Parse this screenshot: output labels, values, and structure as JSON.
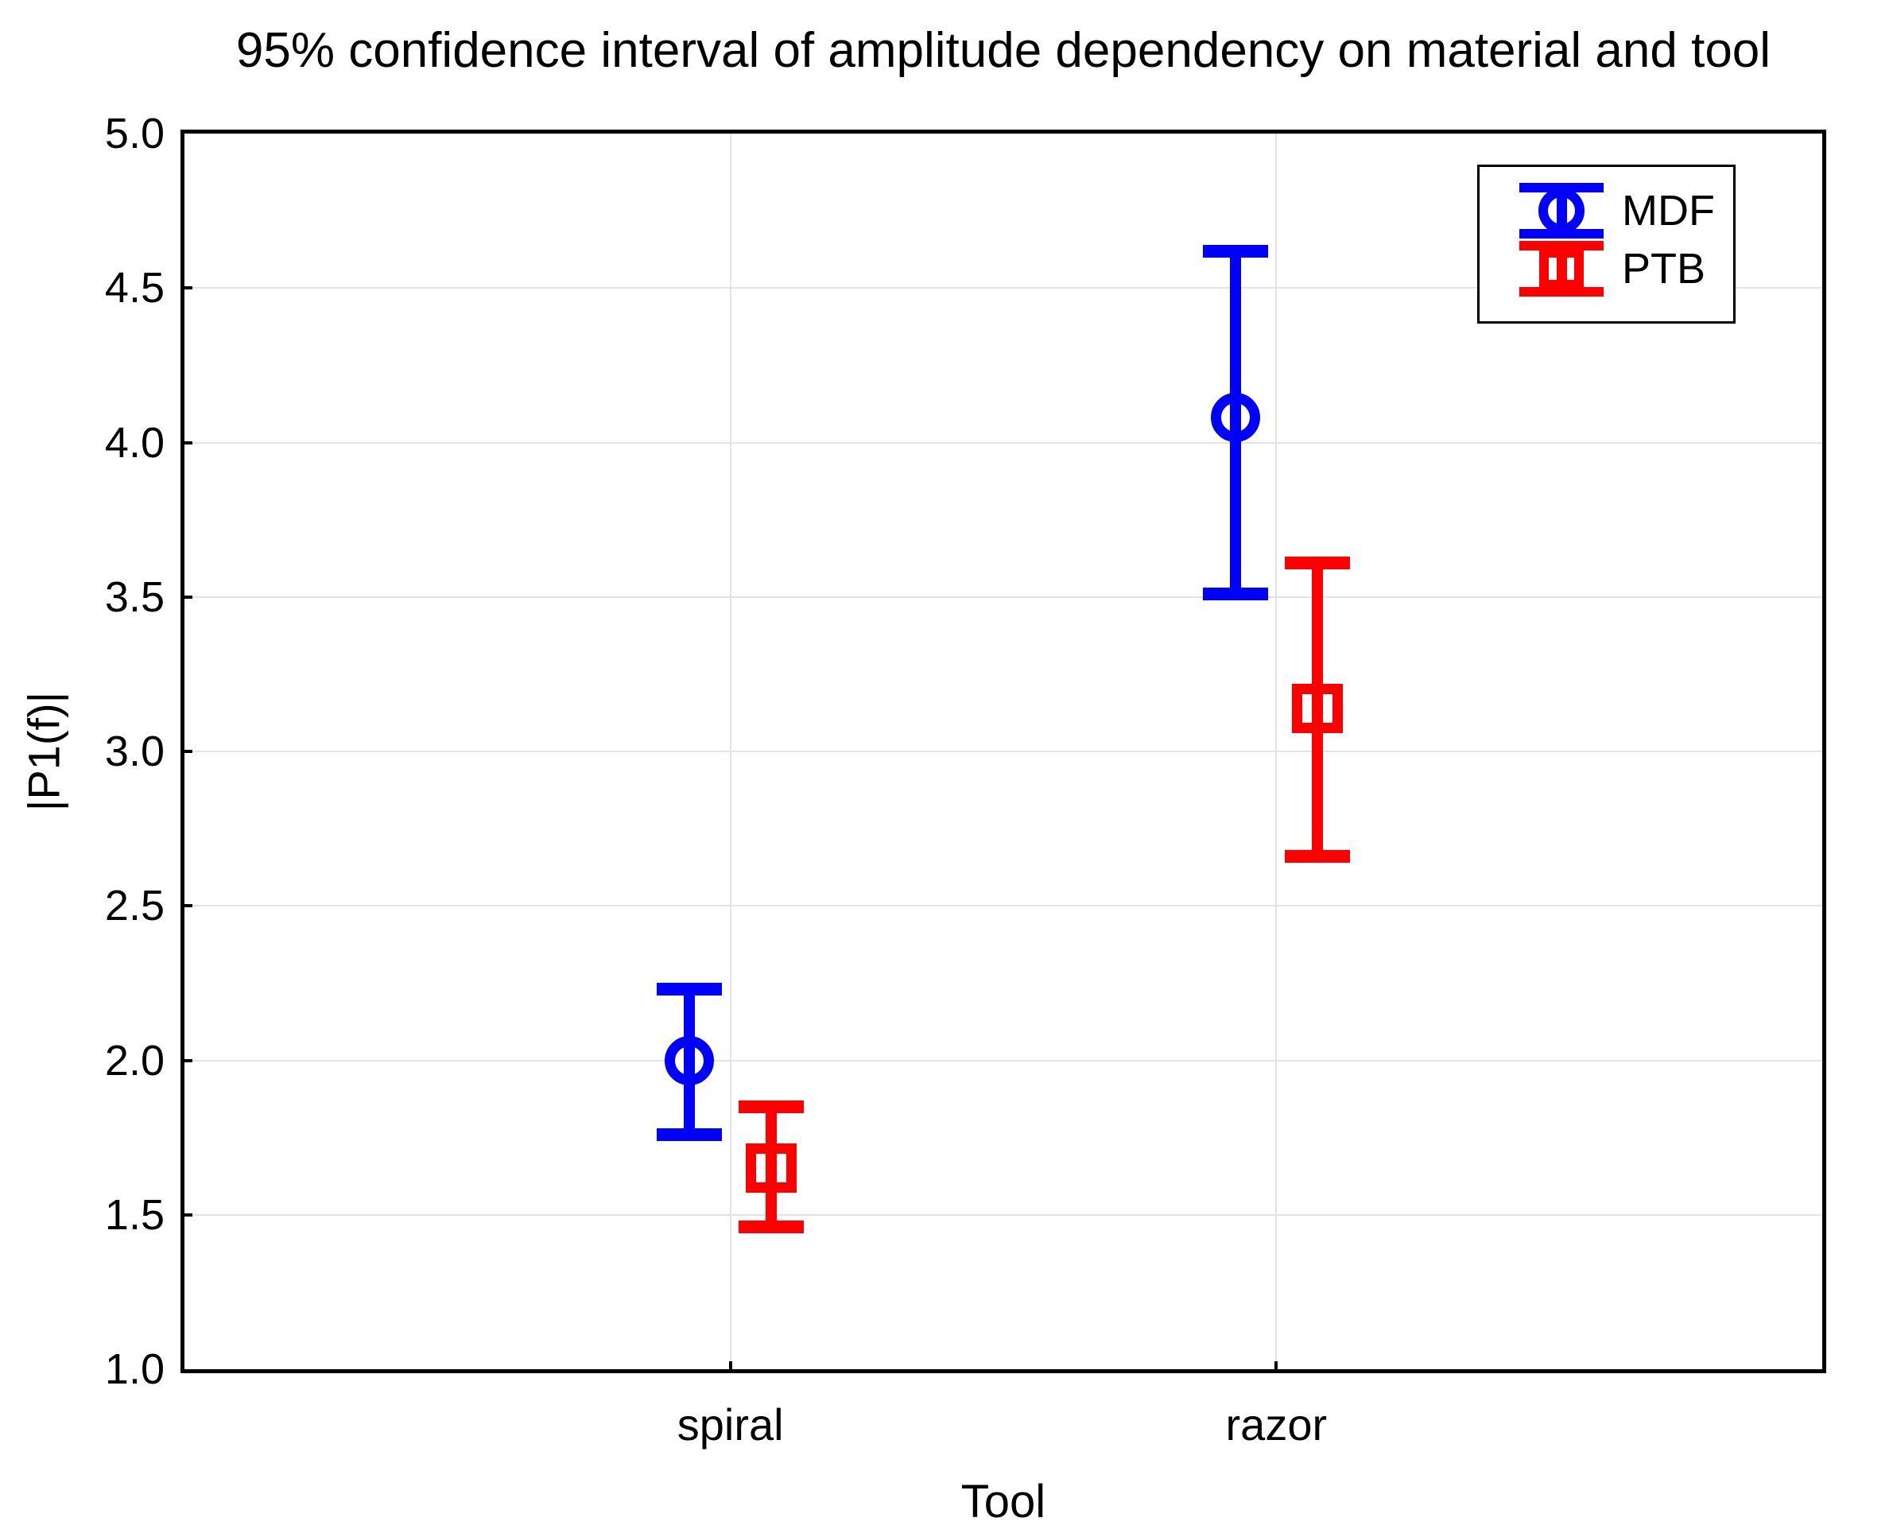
{
  "chart_data": {
    "type": "errorbar",
    "title": "95% confidence interval of amplitude dependency on material and tool",
    "xlabel": "Tool",
    "ylabel": "|P1(f)|",
    "categories": [
      "spiral",
      "razor"
    ],
    "ylim": [
      1.0,
      5.0
    ],
    "yticks": [
      5.0,
      4.5,
      4.0,
      3.5,
      3.0,
      2.5,
      2.0,
      1.5,
      1.0
    ],
    "ytick_decimals": 1,
    "grid": true,
    "legend": {
      "position": "top-right",
      "entries": [
        {
          "label": "MDF",
          "color": "#0000ff",
          "marker": "circle"
        },
        {
          "label": "PTB",
          "color": "#ff0000",
          "marker": "square"
        }
      ]
    },
    "series": [
      {
        "name": "MDF",
        "color": "#0000ff",
        "marker": "circle",
        "points": [
          {
            "category": "spiral",
            "mean": 2.0,
            "ci_low": 1.76,
            "ci_high": 2.23
          },
          {
            "category": "razor",
            "mean": 4.08,
            "ci_low": 3.51,
            "ci_high": 4.62
          }
        ]
      },
      {
        "name": "PTB",
        "color": "#ff0000",
        "marker": "square",
        "points": [
          {
            "category": "spiral",
            "mean": 1.65,
            "ci_low": 1.46,
            "ci_high": 1.85
          },
          {
            "category": "razor",
            "mean": 3.14,
            "ci_low": 2.66,
            "ci_high": 3.61
          }
        ]
      }
    ]
  }
}
